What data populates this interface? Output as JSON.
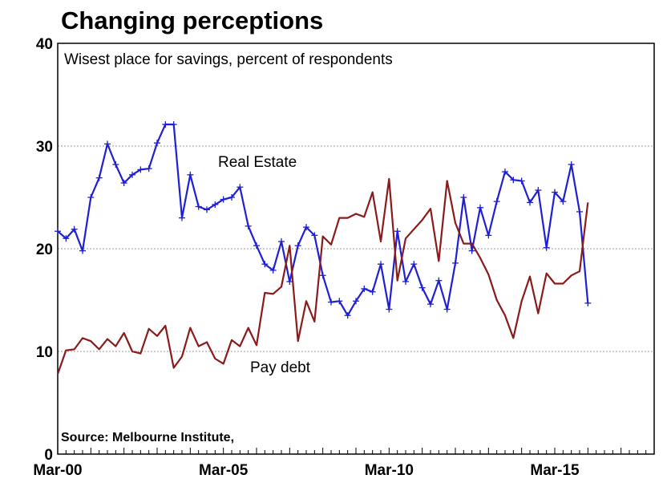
{
  "chart_data": {
    "type": "line",
    "title": "Changing perceptions",
    "subtitle": "Wisest place for savings, percent of respondents",
    "source": "Source: Melbourne Institute,",
    "ylim": [
      0,
      40
    ],
    "yticks": [
      "0",
      "10",
      "20",
      "30",
      "40"
    ],
    "xticks": [
      "Mar-00",
      "Mar-05",
      "Mar-10",
      "Mar-15"
    ],
    "xlim": [
      2000.0,
      2018.0
    ],
    "xtick_values": [
      2000.0,
      2005.0,
      2010.0,
      2015.0
    ],
    "grid": "horizontal dotted",
    "series": [
      {
        "name": "Real Estate",
        "color": "#1f1fd6",
        "marker": "plus",
        "points": [
          [
            2000.0,
            21.7
          ],
          [
            2000.25,
            21.0
          ],
          [
            2000.5,
            21.9
          ],
          [
            2000.75,
            19.8
          ],
          [
            2001.0,
            25.0
          ],
          [
            2001.25,
            26.9
          ],
          [
            2001.5,
            30.2
          ],
          [
            2001.75,
            28.2
          ],
          [
            2002.0,
            26.4
          ],
          [
            2002.25,
            27.2
          ],
          [
            2002.5,
            27.7
          ],
          [
            2002.75,
            27.8
          ],
          [
            2003.0,
            30.3
          ],
          [
            2003.25,
            32.1
          ],
          [
            2003.5,
            32.1
          ],
          [
            2003.75,
            23.0
          ],
          [
            2004.0,
            27.2
          ],
          [
            2004.25,
            24.1
          ],
          [
            2004.5,
            23.8
          ],
          [
            2004.75,
            24.3
          ],
          [
            2005.0,
            24.8
          ],
          [
            2005.25,
            25.0
          ],
          [
            2005.5,
            26.0
          ],
          [
            2005.75,
            22.2
          ],
          [
            2006.0,
            20.3
          ],
          [
            2006.25,
            18.5
          ],
          [
            2006.5,
            17.9
          ],
          [
            2006.75,
            20.7
          ],
          [
            2007.0,
            16.8
          ],
          [
            2007.25,
            20.3
          ],
          [
            2007.5,
            22.1
          ],
          [
            2007.75,
            21.3
          ],
          [
            2008.0,
            17.4
          ],
          [
            2008.25,
            14.8
          ],
          [
            2008.5,
            14.9
          ],
          [
            2008.75,
            13.5
          ],
          [
            2009.0,
            14.9
          ],
          [
            2009.25,
            16.1
          ],
          [
            2009.5,
            15.8
          ],
          [
            2009.75,
            18.5
          ],
          [
            2010.0,
            14.1
          ],
          [
            2010.25,
            21.7
          ],
          [
            2010.5,
            16.8
          ],
          [
            2010.75,
            18.5
          ],
          [
            2011.0,
            16.2
          ],
          [
            2011.25,
            14.6
          ],
          [
            2011.5,
            16.9
          ],
          [
            2011.75,
            14.1
          ],
          [
            2012.0,
            18.6
          ],
          [
            2012.25,
            25.0
          ],
          [
            2012.5,
            19.8
          ],
          [
            2012.75,
            24.0
          ],
          [
            2013.0,
            21.3
          ],
          [
            2013.25,
            24.6
          ],
          [
            2013.5,
            27.5
          ],
          [
            2013.75,
            26.7
          ],
          [
            2014.0,
            26.6
          ],
          [
            2014.25,
            24.5
          ],
          [
            2014.5,
            25.7
          ],
          [
            2014.75,
            20.1
          ],
          [
            2015.0,
            25.5
          ],
          [
            2015.25,
            24.6
          ],
          [
            2015.5,
            28.2
          ],
          [
            2015.75,
            23.6
          ],
          [
            2016.0,
            14.7
          ]
        ]
      },
      {
        "name": "Pay debt",
        "color": "#8b1a1a",
        "marker": "none",
        "points": [
          [
            2000.0,
            7.8
          ],
          [
            2000.25,
            10.1
          ],
          [
            2000.5,
            10.2
          ],
          [
            2000.75,
            11.3
          ],
          [
            2001.0,
            11.0
          ],
          [
            2001.25,
            10.2
          ],
          [
            2001.5,
            11.2
          ],
          [
            2001.75,
            10.5
          ],
          [
            2002.0,
            11.8
          ],
          [
            2002.25,
            10.0
          ],
          [
            2002.5,
            9.8
          ],
          [
            2002.75,
            12.2
          ],
          [
            2003.0,
            11.5
          ],
          [
            2003.25,
            12.5
          ],
          [
            2003.5,
            8.4
          ],
          [
            2003.75,
            9.5
          ],
          [
            2004.0,
            12.3
          ],
          [
            2004.25,
            10.5
          ],
          [
            2004.5,
            10.9
          ],
          [
            2004.75,
            9.3
          ],
          [
            2005.0,
            8.8
          ],
          [
            2005.25,
            11.1
          ],
          [
            2005.5,
            10.5
          ],
          [
            2005.75,
            12.3
          ],
          [
            2006.0,
            10.6
          ],
          [
            2006.25,
            15.7
          ],
          [
            2006.5,
            15.6
          ],
          [
            2006.75,
            16.3
          ],
          [
            2007.0,
            20.3
          ],
          [
            2007.25,
            11.0
          ],
          [
            2007.5,
            14.9
          ],
          [
            2007.75,
            12.9
          ],
          [
            2008.0,
            21.2
          ],
          [
            2008.25,
            20.4
          ],
          [
            2008.5,
            23.0
          ],
          [
            2008.75,
            23.0
          ],
          [
            2009.0,
            23.4
          ],
          [
            2009.25,
            23.1
          ],
          [
            2009.5,
            25.5
          ],
          [
            2009.75,
            20.7
          ],
          [
            2010.0,
            26.8
          ],
          [
            2010.25,
            16.9
          ],
          [
            2010.5,
            21.0
          ],
          [
            2010.75,
            21.9
          ],
          [
            2011.0,
            22.8
          ],
          [
            2011.25,
            23.9
          ],
          [
            2011.5,
            18.8
          ],
          [
            2011.75,
            26.6
          ],
          [
            2012.0,
            22.5
          ],
          [
            2012.25,
            20.5
          ],
          [
            2012.5,
            20.5
          ],
          [
            2012.75,
            19.1
          ],
          [
            2013.0,
            17.5
          ],
          [
            2013.25,
            15.0
          ],
          [
            2013.5,
            13.5
          ],
          [
            2013.75,
            11.3
          ],
          [
            2014.0,
            14.9
          ],
          [
            2014.25,
            17.3
          ],
          [
            2014.5,
            13.7
          ],
          [
            2014.75,
            17.6
          ],
          [
            2015.0,
            16.6
          ],
          [
            2015.25,
            16.6
          ],
          [
            2015.5,
            17.4
          ],
          [
            2015.75,
            17.8
          ],
          [
            2016.0,
            24.5
          ]
        ]
      }
    ],
    "annotations": [
      "Real Estate",
      "Pay debt"
    ]
  }
}
